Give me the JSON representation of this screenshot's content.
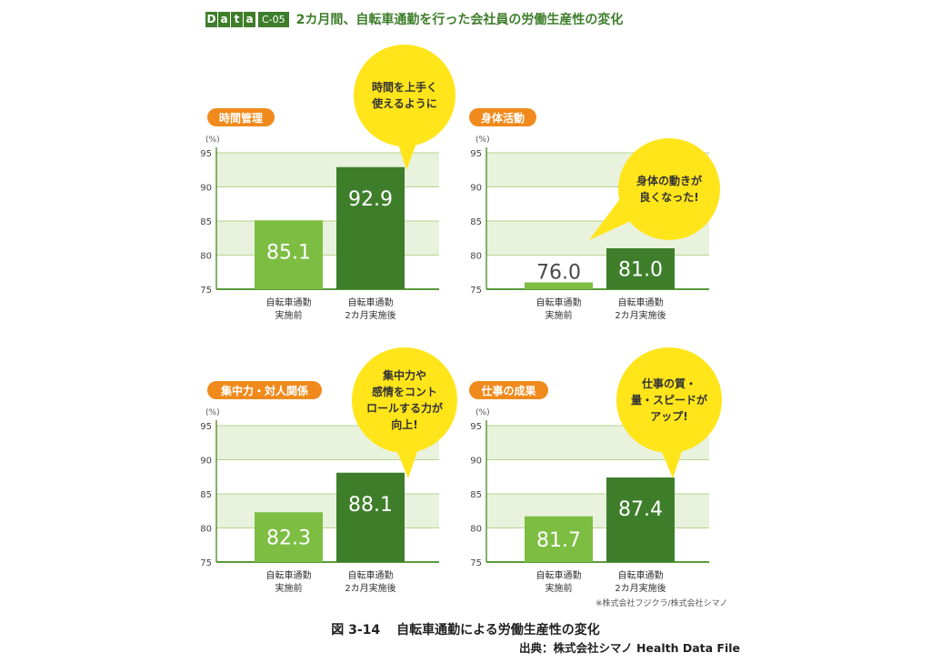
{
  "header": {
    "data_letters": [
      "D",
      "a",
      "t",
      "a"
    ],
    "code": "C-05",
    "title": "2カ月間、自転車通勤を行った会社員の労働生産性の変化"
  },
  "chart_data": [
    {
      "type": "bar",
      "title": "時間管理",
      "ylabel": "(%)",
      "ylim": [
        75,
        95
      ],
      "yticks": [
        75,
        80,
        85,
        90,
        95
      ],
      "categories": [
        "自転車通勤\n実施前",
        "自転車通勤\n2カ月実施後"
      ],
      "values": [
        85.1,
        92.9
      ],
      "labels": [
        "85.1",
        "92.9"
      ],
      "bubble": [
        "時間を上手く",
        "使えるように"
      ]
    },
    {
      "type": "bar",
      "title": "身体活動",
      "ylabel": "(%)",
      "ylim": [
        75,
        95
      ],
      "yticks": [
        75,
        80,
        85,
        90,
        95
      ],
      "categories": [
        "自転車通勤\n実施前",
        "自転車通勤\n2カ月実施後"
      ],
      "values": [
        76.0,
        81.0
      ],
      "labels": [
        "76.0",
        "81.0"
      ],
      "bubble": [
        "身体の動きが",
        "良くなった!"
      ]
    },
    {
      "type": "bar",
      "title": "集中力・対人関係",
      "ylabel": "(%)",
      "ylim": [
        75,
        95
      ],
      "yticks": [
        75,
        80,
        85,
        90,
        95
      ],
      "categories": [
        "自転車通勤\n実施前",
        "自転車通勤\n2カ月実施後"
      ],
      "values": [
        82.3,
        88.1
      ],
      "labels": [
        "82.3",
        "88.1"
      ],
      "bubble": [
        "集中力や",
        "感情をコント",
        "ロールする力が",
        "向上!"
      ]
    },
    {
      "type": "bar",
      "title": "仕事の成果",
      "ylabel": "(%)",
      "ylim": [
        75,
        95
      ],
      "yticks": [
        75,
        80,
        85,
        90,
        95
      ],
      "categories": [
        "自転車通勤\n実施前",
        "自転車通勤\n2カ月実施後"
      ],
      "values": [
        81.7,
        87.4
      ],
      "labels": [
        "81.7",
        "87.4"
      ],
      "bubble": [
        "仕事の質・",
        "量・スピードが",
        "アップ!"
      ]
    }
  ],
  "colors": {
    "bar_before": "#7dbd42",
    "bar_after": "#3e7e2b",
    "band": "#e9f2dc",
    "axis": "#5a9a3a",
    "title_tag": "#f08a1c",
    "bubble": "#ffe51a"
  },
  "note": "※株式会社フジクラ/株式会社シマノ",
  "caption": {
    "number": "図 3-14",
    "text": "自転車通勤による労働生産性の変化"
  },
  "source": "出典：株式会社シマノ Health Data File"
}
